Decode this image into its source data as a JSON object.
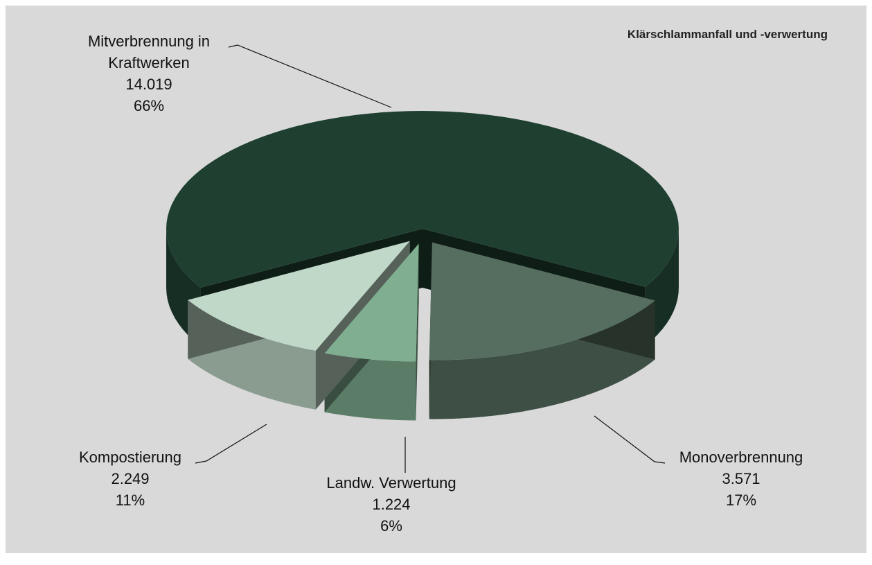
{
  "chart_data": {
    "type": "pie",
    "title": "Klärschlammanfall und -verwertung",
    "categories": [
      "Mitverbrennung in Kraftwerken",
      "Monoverbrennung",
      "Landw. Verwertung",
      "Kompostierung"
    ],
    "values": [
      14019,
      3571,
      1224,
      2249
    ],
    "value_labels": [
      "14.019",
      "3.571",
      "1.224",
      "2.249"
    ],
    "percents": [
      66,
      17,
      6,
      11
    ],
    "percent_labels": [
      "66%",
      "17%",
      "6%",
      "11%"
    ],
    "colors": [
      "#1f4031",
      "#566e60",
      "#7fae90",
      "#c0d8c8"
    ]
  }
}
